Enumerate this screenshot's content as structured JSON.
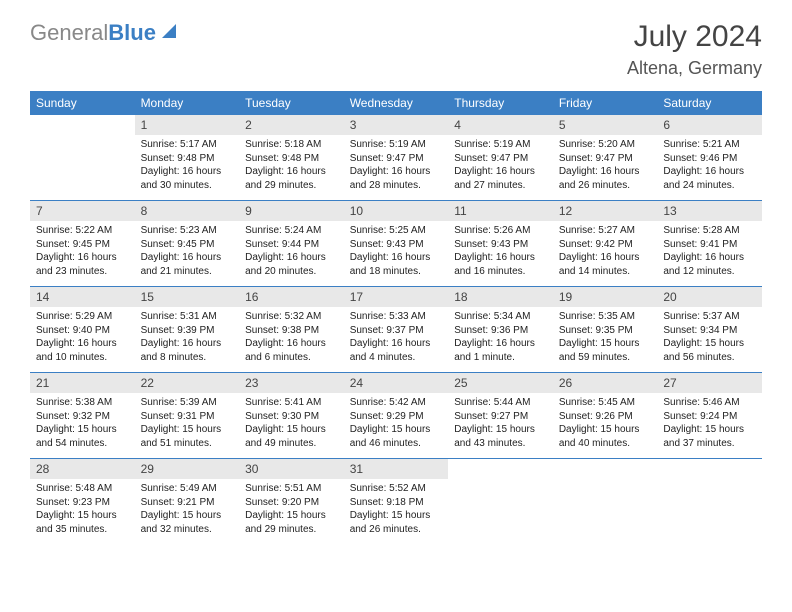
{
  "logo": {
    "part1": "General",
    "part2": "Blue"
  },
  "title": {
    "month": "July 2024",
    "location": "Altena, Germany"
  },
  "dayHeaders": [
    "Sunday",
    "Monday",
    "Tuesday",
    "Wednesday",
    "Thursday",
    "Friday",
    "Saturday"
  ],
  "colors": {
    "header_bg": "#3b7fc4",
    "header_text": "#ffffff",
    "daynum_bg": "#e8e8e8",
    "row_border": "#3b7fc4"
  },
  "weeks": [
    [
      null,
      {
        "n": "1",
        "sr": "5:17 AM",
        "ss": "9:48 PM",
        "dl": "16 hours and 30 minutes."
      },
      {
        "n": "2",
        "sr": "5:18 AM",
        "ss": "9:48 PM",
        "dl": "16 hours and 29 minutes."
      },
      {
        "n": "3",
        "sr": "5:19 AM",
        "ss": "9:47 PM",
        "dl": "16 hours and 28 minutes."
      },
      {
        "n": "4",
        "sr": "5:19 AM",
        "ss": "9:47 PM",
        "dl": "16 hours and 27 minutes."
      },
      {
        "n": "5",
        "sr": "5:20 AM",
        "ss": "9:47 PM",
        "dl": "16 hours and 26 minutes."
      },
      {
        "n": "6",
        "sr": "5:21 AM",
        "ss": "9:46 PM",
        "dl": "16 hours and 24 minutes."
      }
    ],
    [
      {
        "n": "7",
        "sr": "5:22 AM",
        "ss": "9:45 PM",
        "dl": "16 hours and 23 minutes."
      },
      {
        "n": "8",
        "sr": "5:23 AM",
        "ss": "9:45 PM",
        "dl": "16 hours and 21 minutes."
      },
      {
        "n": "9",
        "sr": "5:24 AM",
        "ss": "9:44 PM",
        "dl": "16 hours and 20 minutes."
      },
      {
        "n": "10",
        "sr": "5:25 AM",
        "ss": "9:43 PM",
        "dl": "16 hours and 18 minutes."
      },
      {
        "n": "11",
        "sr": "5:26 AM",
        "ss": "9:43 PM",
        "dl": "16 hours and 16 minutes."
      },
      {
        "n": "12",
        "sr": "5:27 AM",
        "ss": "9:42 PM",
        "dl": "16 hours and 14 minutes."
      },
      {
        "n": "13",
        "sr": "5:28 AM",
        "ss": "9:41 PM",
        "dl": "16 hours and 12 minutes."
      }
    ],
    [
      {
        "n": "14",
        "sr": "5:29 AM",
        "ss": "9:40 PM",
        "dl": "16 hours and 10 minutes."
      },
      {
        "n": "15",
        "sr": "5:31 AM",
        "ss": "9:39 PM",
        "dl": "16 hours and 8 minutes."
      },
      {
        "n": "16",
        "sr": "5:32 AM",
        "ss": "9:38 PM",
        "dl": "16 hours and 6 minutes."
      },
      {
        "n": "17",
        "sr": "5:33 AM",
        "ss": "9:37 PM",
        "dl": "16 hours and 4 minutes."
      },
      {
        "n": "18",
        "sr": "5:34 AM",
        "ss": "9:36 PM",
        "dl": "16 hours and 1 minute."
      },
      {
        "n": "19",
        "sr": "5:35 AM",
        "ss": "9:35 PM",
        "dl": "15 hours and 59 minutes."
      },
      {
        "n": "20",
        "sr": "5:37 AM",
        "ss": "9:34 PM",
        "dl": "15 hours and 56 minutes."
      }
    ],
    [
      {
        "n": "21",
        "sr": "5:38 AM",
        "ss": "9:32 PM",
        "dl": "15 hours and 54 minutes."
      },
      {
        "n": "22",
        "sr": "5:39 AM",
        "ss": "9:31 PM",
        "dl": "15 hours and 51 minutes."
      },
      {
        "n": "23",
        "sr": "5:41 AM",
        "ss": "9:30 PM",
        "dl": "15 hours and 49 minutes."
      },
      {
        "n": "24",
        "sr": "5:42 AM",
        "ss": "9:29 PM",
        "dl": "15 hours and 46 minutes."
      },
      {
        "n": "25",
        "sr": "5:44 AM",
        "ss": "9:27 PM",
        "dl": "15 hours and 43 minutes."
      },
      {
        "n": "26",
        "sr": "5:45 AM",
        "ss": "9:26 PM",
        "dl": "15 hours and 40 minutes."
      },
      {
        "n": "27",
        "sr": "5:46 AM",
        "ss": "9:24 PM",
        "dl": "15 hours and 37 minutes."
      }
    ],
    [
      {
        "n": "28",
        "sr": "5:48 AM",
        "ss": "9:23 PM",
        "dl": "15 hours and 35 minutes."
      },
      {
        "n": "29",
        "sr": "5:49 AM",
        "ss": "9:21 PM",
        "dl": "15 hours and 32 minutes."
      },
      {
        "n": "30",
        "sr": "5:51 AM",
        "ss": "9:20 PM",
        "dl": "15 hours and 29 minutes."
      },
      {
        "n": "31",
        "sr": "5:52 AM",
        "ss": "9:18 PM",
        "dl": "15 hours and 26 minutes."
      },
      null,
      null,
      null
    ]
  ],
  "labels": {
    "sunrise": "Sunrise:",
    "sunset": "Sunset:",
    "daylight": "Daylight:"
  }
}
